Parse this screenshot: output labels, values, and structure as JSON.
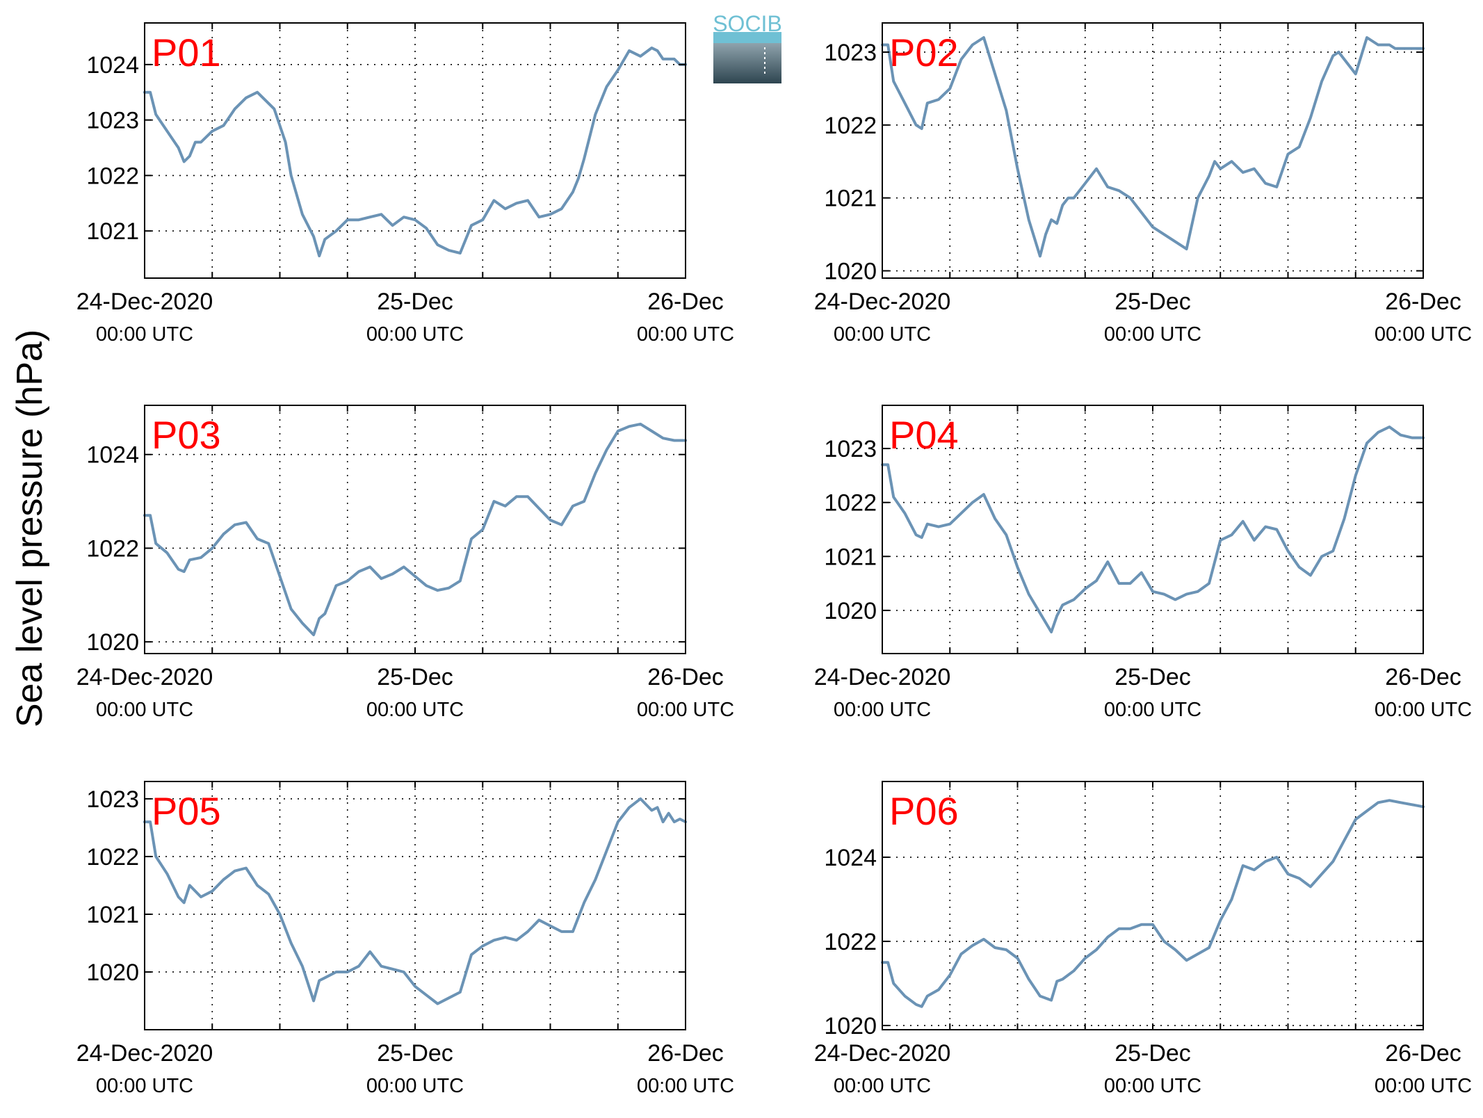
{
  "figure": {
    "ylabel": "Sea level pressure (hPa)",
    "logo_text": "SOCIB",
    "colors": {
      "line": "#6b93b5",
      "label": "#ff0000",
      "axis": "#000000",
      "grid": "#000000",
      "logo_top": "#6fc0d4",
      "logo_bottom": "#2e4550"
    }
  },
  "chart_data": [
    {
      "type": "line",
      "title": "P01",
      "xlim": [
        0,
        48
      ],
      "ylim": [
        1020.15,
        1024.75
      ],
      "yticks": [
        1021,
        1022,
        1023,
        1024
      ],
      "xticklabels": [
        {
          "x": 0,
          "line1": "24-Dec-2020",
          "line2": "00:00 UTC"
        },
        {
          "x": 24,
          "line1": "25-Dec",
          "line2": "00:00 UTC"
        },
        {
          "x": 48,
          "line1": "26-Dec",
          "line2": "00:00 UTC"
        }
      ],
      "grid": true,
      "series": [
        {
          "x": [
            0,
            0.5,
            1,
            2,
            3,
            3.5,
            4,
            4.5,
            5,
            6,
            7,
            8,
            9,
            10,
            11,
            11.5,
            12,
            12.5,
            13,
            14,
            15,
            15.5,
            16,
            17,
            18,
            19,
            20,
            21,
            22,
            23,
            24,
            25,
            26,
            27,
            28,
            29,
            30,
            31,
            32,
            33,
            34,
            35,
            36,
            37,
            38,
            38.5,
            39,
            40,
            41,
            42,
            43,
            44,
            45,
            45.5,
            46,
            47,
            47.5,
            48
          ],
          "y": [
            1023.5,
            1023.5,
            1023.1,
            1022.8,
            1022.5,
            1022.25,
            1022.35,
            1022.6,
            1022.6,
            1022.8,
            1022.9,
            1023.2,
            1023.4,
            1023.5,
            1023.3,
            1023.2,
            1022.9,
            1022.6,
            1022.0,
            1021.3,
            1020.9,
            1020.55,
            1020.85,
            1021.0,
            1021.2,
            1021.2,
            1021.25,
            1021.3,
            1021.1,
            1021.25,
            1021.2,
            1021.05,
            1020.75,
            1020.65,
            1020.6,
            1021.1,
            1021.2,
            1021.55,
            1021.4,
            1021.5,
            1021.55,
            1021.25,
            1021.3,
            1021.4,
            1021.7,
            1021.95,
            1022.3,
            1023.1,
            1023.6,
            1023.9,
            1024.25,
            1024.15,
            1024.3,
            1024.25,
            1024.1,
            1024.1,
            1024.0,
            1024.0
          ]
        }
      ]
    },
    {
      "type": "line",
      "title": "P02",
      "xlim": [
        0,
        48
      ],
      "ylim": [
        1019.9,
        1023.4
      ],
      "yticks": [
        1020,
        1021,
        1022,
        1023
      ],
      "xticklabels": [
        {
          "x": 0,
          "line1": "24-Dec-2020",
          "line2": "00:00 UTC"
        },
        {
          "x": 24,
          "line1": "25-Dec",
          "line2": "00:00 UTC"
        },
        {
          "x": 48,
          "line1": "26-Dec",
          "line2": "00:00 UTC"
        }
      ],
      "grid": true,
      "series": [
        {
          "x": [
            0,
            0.5,
            1,
            2,
            3,
            3.5,
            4,
            5,
            6,
            7,
            8,
            9,
            10,
            11,
            12,
            13,
            14,
            14.5,
            15,
            15.5,
            16,
            16.5,
            17,
            18,
            19,
            20,
            21,
            22,
            23,
            24,
            25,
            26,
            27,
            28,
            29,
            29.5,
            30,
            31,
            32,
            33,
            34,
            35,
            36,
            37,
            38,
            39,
            40,
            40.5,
            41,
            42,
            43,
            44,
            45,
            45.5,
            46,
            46.5,
            47,
            48
          ],
          "y": [
            1023.1,
            1023.1,
            1022.6,
            1022.3,
            1022.0,
            1021.95,
            1022.3,
            1022.35,
            1022.5,
            1022.9,
            1023.1,
            1023.2,
            1022.7,
            1022.2,
            1021.4,
            1020.7,
            1020.2,
            1020.5,
            1020.7,
            1020.65,
            1020.9,
            1021.0,
            1021.0,
            1021.2,
            1021.4,
            1021.15,
            1021.1,
            1021.0,
            1020.8,
            1020.6,
            1020.5,
            1020.4,
            1020.3,
            1021.0,
            1021.3,
            1021.5,
            1021.4,
            1021.5,
            1021.35,
            1021.4,
            1021.2,
            1021.15,
            1021.6,
            1021.7,
            1022.1,
            1022.6,
            1022.95,
            1023.0,
            1022.9,
            1022.7,
            1023.2,
            1023.1,
            1023.1,
            1023.05,
            1023.05,
            1023.05,
            1023.05,
            1023.05
          ]
        }
      ]
    },
    {
      "type": "line",
      "title": "P03",
      "xlim": [
        0,
        48
      ],
      "ylim": [
        1019.75,
        1025.05
      ],
      "yticks": [
        1020,
        1022,
        1024
      ],
      "xticklabels": [
        {
          "x": 0,
          "line1": "24-Dec-2020",
          "line2": "00:00 UTC"
        },
        {
          "x": 24,
          "line1": "25-Dec",
          "line2": "00:00 UTC"
        },
        {
          "x": 48,
          "line1": "26-Dec",
          "line2": "00:00 UTC"
        }
      ],
      "grid": true,
      "series": [
        {
          "x": [
            0,
            0.5,
            1,
            2,
            3,
            3.5,
            4,
            5,
            6,
            7,
            8,
            9,
            10,
            11,
            12,
            13,
            14,
            15,
            15.5,
            16,
            17,
            18,
            19,
            20,
            21,
            22,
            23,
            24,
            25,
            26,
            27,
            28,
            29,
            30,
            31,
            32,
            33,
            34,
            35,
            36,
            37,
            38,
            39,
            40,
            41,
            42,
            43,
            44,
            45,
            46,
            47,
            48
          ],
          "y": [
            1022.7,
            1022.7,
            1022.1,
            1021.9,
            1021.55,
            1021.5,
            1021.75,
            1021.8,
            1022.0,
            1022.3,
            1022.5,
            1022.55,
            1022.2,
            1022.1,
            1021.4,
            1020.7,
            1020.4,
            1020.15,
            1020.5,
            1020.6,
            1021.2,
            1021.3,
            1021.5,
            1021.6,
            1021.35,
            1021.45,
            1021.6,
            1021.4,
            1021.2,
            1021.1,
            1021.15,
            1021.3,
            1022.2,
            1022.4,
            1023.0,
            1022.9,
            1023.1,
            1023.1,
            1022.85,
            1022.6,
            1022.5,
            1022.9,
            1023.0,
            1023.6,
            1024.1,
            1024.5,
            1024.6,
            1024.65,
            1024.5,
            1024.35,
            1024.3,
            1024.3
          ]
        }
      ]
    },
    {
      "type": "line",
      "title": "P04",
      "xlim": [
        0,
        48
      ],
      "ylim": [
        1019.2,
        1023.8
      ],
      "yticks": [
        1020,
        1021,
        1022,
        1023
      ],
      "xticklabels": [
        {
          "x": 0,
          "line1": "24-Dec-2020",
          "line2": "00:00 UTC"
        },
        {
          "x": 24,
          "line1": "25-Dec",
          "line2": "00:00 UTC"
        },
        {
          "x": 48,
          "line1": "26-Dec",
          "line2": "00:00 UTC"
        }
      ],
      "grid": true,
      "series": [
        {
          "x": [
            0,
            0.5,
            1,
            2,
            3,
            3.5,
            4,
            5,
            6,
            7,
            8,
            9,
            10,
            11,
            12,
            13,
            14,
            15,
            15.5,
            16,
            17,
            18,
            19,
            20,
            21,
            22,
            23,
            24,
            25,
            26,
            27,
            28,
            29,
            30,
            31,
            32,
            33,
            34,
            35,
            36,
            37,
            38,
            39,
            40,
            41,
            42,
            43,
            44,
            45,
            46,
            47,
            48
          ],
          "y": [
            1022.7,
            1022.7,
            1022.1,
            1021.8,
            1021.4,
            1021.35,
            1021.6,
            1021.55,
            1021.6,
            1021.8,
            1022.0,
            1022.15,
            1021.7,
            1021.4,
            1020.8,
            1020.3,
            1019.95,
            1019.6,
            1019.9,
            1020.1,
            1020.2,
            1020.4,
            1020.55,
            1020.9,
            1020.5,
            1020.5,
            1020.7,
            1020.35,
            1020.3,
            1020.2,
            1020.3,
            1020.35,
            1020.5,
            1021.3,
            1021.4,
            1021.65,
            1021.3,
            1021.55,
            1021.5,
            1021.1,
            1020.8,
            1020.65,
            1021.0,
            1021.1,
            1021.7,
            1022.5,
            1023.1,
            1023.3,
            1023.4,
            1023.25,
            1023.2,
            1023.2
          ]
        }
      ]
    },
    {
      "type": "line",
      "title": "P05",
      "xlim": [
        0,
        48
      ],
      "ylim": [
        1019.0,
        1023.3
      ],
      "yticks": [
        1020,
        1021,
        1022,
        1023
      ],
      "xticklabels": [
        {
          "x": 0,
          "line1": "24-Dec-2020",
          "line2": "00:00 UTC"
        },
        {
          "x": 24,
          "line1": "25-Dec",
          "line2": "00:00 UTC"
        },
        {
          "x": 48,
          "line1": "26-Dec",
          "line2": "00:00 UTC"
        }
      ],
      "grid": true,
      "series": [
        {
          "x": [
            0,
            0.5,
            1,
            2,
            3,
            3.5,
            4,
            5,
            6,
            7,
            8,
            9,
            10,
            11,
            12,
            13,
            14,
            15,
            15.5,
            16,
            17,
            18,
            19,
            20,
            21,
            22,
            23,
            24,
            25,
            26,
            27,
            28,
            29,
            30,
            31,
            32,
            33,
            34,
            35,
            36,
            37,
            38,
            39,
            40,
            41,
            42,
            43,
            44,
            45,
            45.5,
            46,
            46.5,
            47,
            47.5,
            48
          ],
          "y": [
            1022.6,
            1022.6,
            1022.0,
            1021.7,
            1021.3,
            1021.2,
            1021.5,
            1021.3,
            1021.4,
            1021.6,
            1021.75,
            1021.8,
            1021.5,
            1021.35,
            1021.0,
            1020.5,
            1020.1,
            1019.5,
            1019.85,
            1019.9,
            1020.0,
            1020.0,
            1020.1,
            1020.35,
            1020.1,
            1020.05,
            1020.0,
            1019.75,
            1019.6,
            1019.45,
            1019.55,
            1019.65,
            1020.3,
            1020.45,
            1020.55,
            1020.6,
            1020.55,
            1020.7,
            1020.9,
            1020.8,
            1020.7,
            1020.7,
            1021.2,
            1021.6,
            1022.1,
            1022.6,
            1022.85,
            1023.0,
            1022.8,
            1022.85,
            1022.6,
            1022.75,
            1022.6,
            1022.65,
            1022.6
          ]
        }
      ]
    },
    {
      "type": "line",
      "title": "P06",
      "xlim": [
        0,
        48
      ],
      "ylim": [
        1019.9,
        1025.8
      ],
      "yticks": [
        1020,
        1022,
        1024
      ],
      "xticklabels": [
        {
          "x": 0,
          "line1": "24-Dec-2020",
          "line2": "00:00 UTC"
        },
        {
          "x": 24,
          "line1": "25-Dec",
          "line2": "00:00 UTC"
        },
        {
          "x": 48,
          "line1": "26-Dec",
          "line2": "00:00 UTC"
        }
      ],
      "grid": true,
      "series": [
        {
          "x": [
            0,
            0.5,
            1,
            2,
            3,
            3.5,
            4,
            5,
            6,
            7,
            8,
            9,
            10,
            11,
            12,
            13,
            14,
            15,
            15.5,
            16,
            17,
            18,
            19,
            20,
            21,
            22,
            23,
            24,
            25,
            26,
            27,
            28,
            29,
            30,
            31,
            32,
            33,
            34,
            35,
            36,
            37,
            38,
            39,
            40,
            41,
            42,
            43,
            44,
            45,
            46,
            47,
            48
          ],
          "y": [
            1021.5,
            1021.5,
            1021.0,
            1020.7,
            1020.5,
            1020.45,
            1020.7,
            1020.85,
            1021.2,
            1021.7,
            1021.9,
            1022.05,
            1021.85,
            1021.8,
            1021.6,
            1021.1,
            1020.7,
            1020.6,
            1021.05,
            1021.1,
            1021.3,
            1021.6,
            1021.8,
            1022.1,
            1022.3,
            1022.3,
            1022.4,
            1022.4,
            1022.0,
            1021.8,
            1021.55,
            1021.7,
            1021.85,
            1022.5,
            1023.0,
            1023.8,
            1023.7,
            1023.9,
            1024.0,
            1023.6,
            1023.5,
            1023.3,
            1023.6,
            1023.9,
            1024.4,
            1024.9,
            1025.1,
            1025.3,
            1025.35,
            1025.3,
            1025.25,
            1025.2
          ]
        }
      ]
    }
  ]
}
